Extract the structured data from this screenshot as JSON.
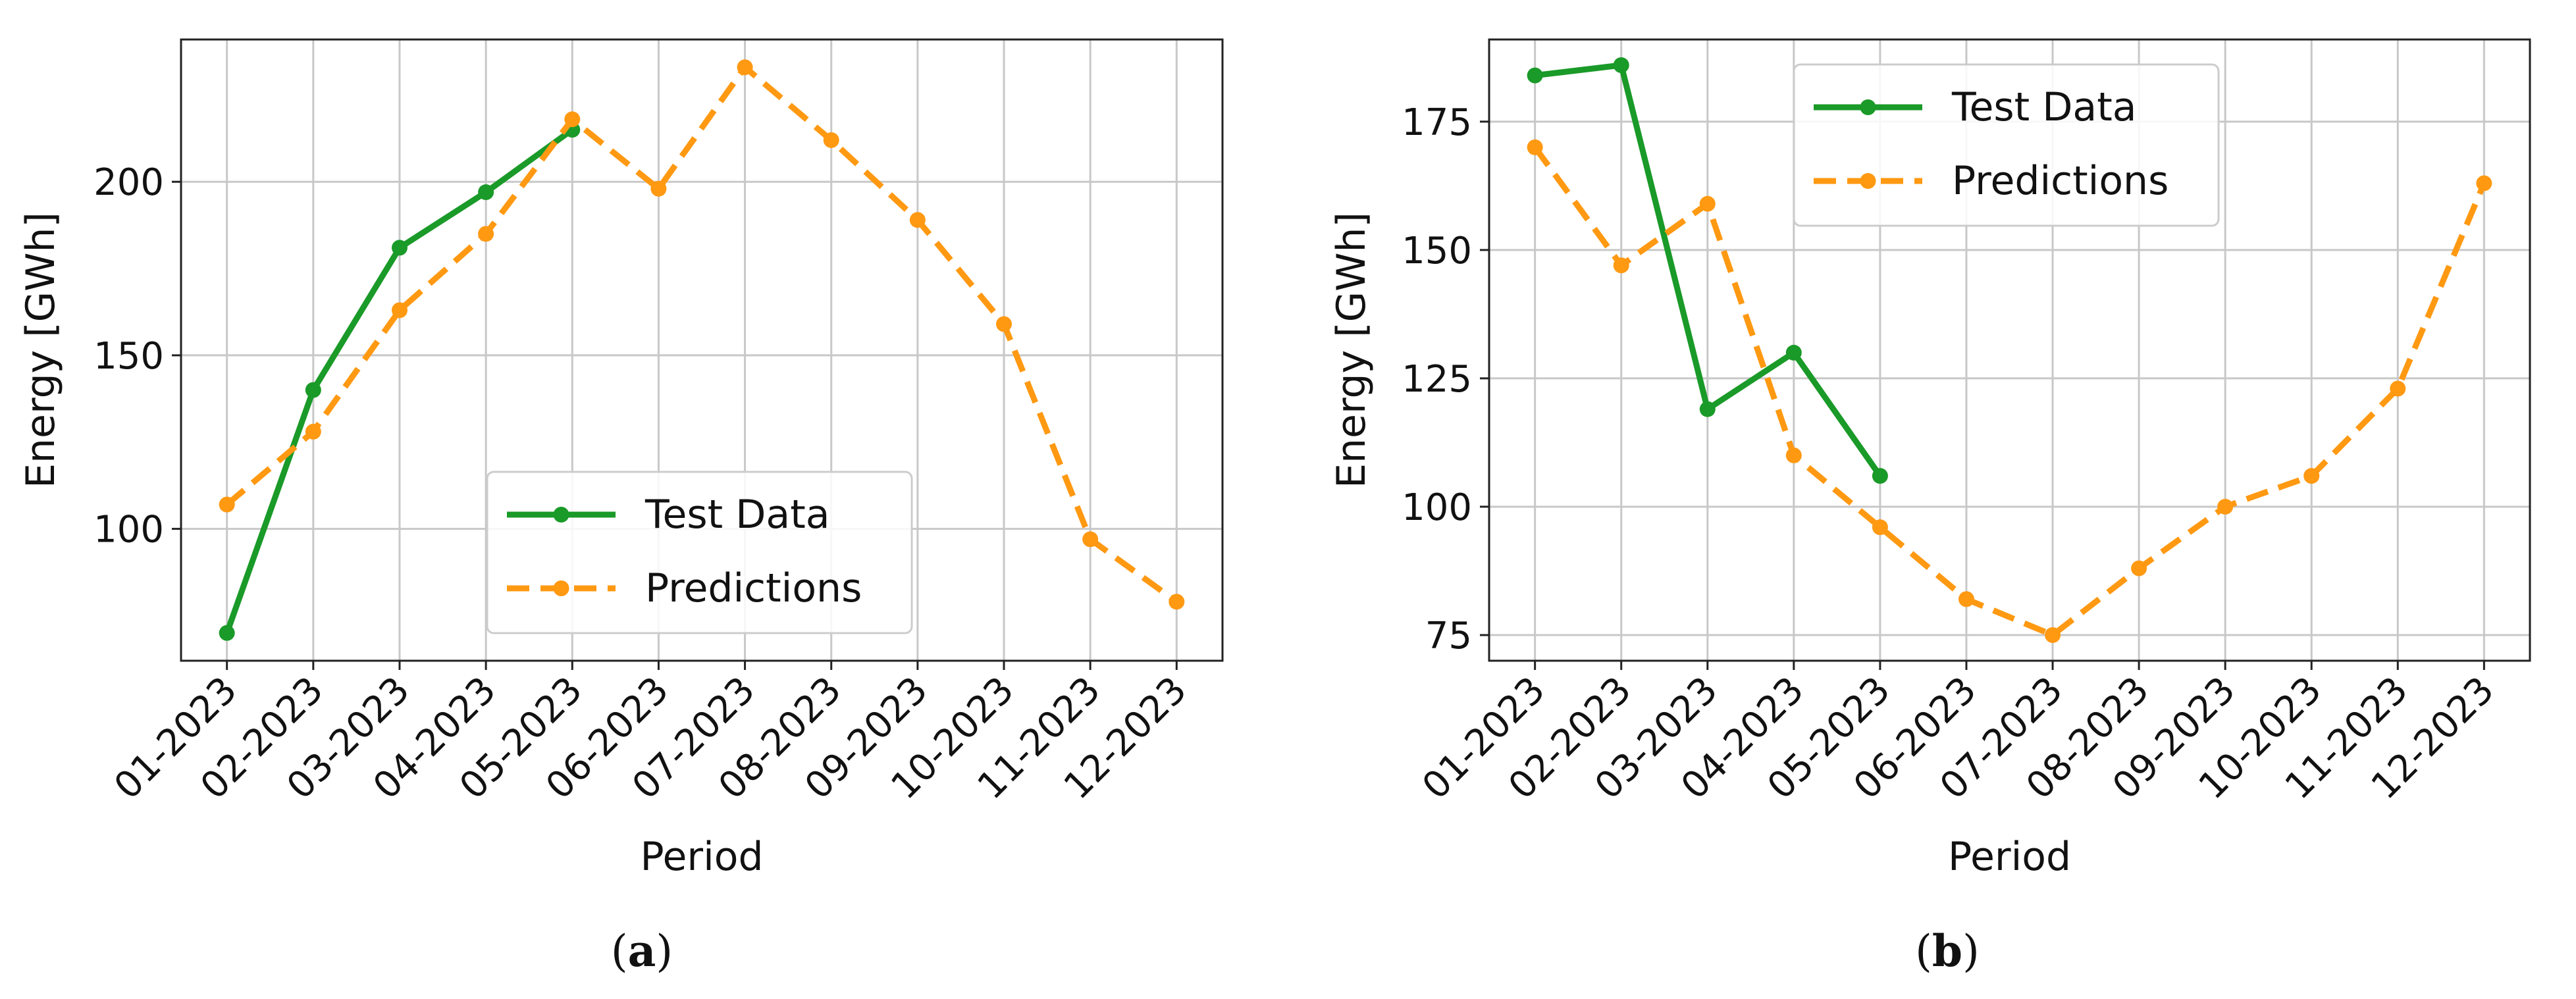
{
  "chart_data": [
    {
      "type": "line",
      "caption": "a",
      "categories": [
        "01-2023",
        "02-2023",
        "03-2023",
        "04-2023",
        "05-2023",
        "06-2023",
        "07-2023",
        "08-2023",
        "09-2023",
        "10-2023",
        "11-2023",
        "12-2023"
      ],
      "series": [
        {
          "name": "Test Data",
          "style": "solid",
          "color": "#1a9a28",
          "values": [
            70,
            140,
            181,
            197,
            215,
            null,
            null,
            null,
            null,
            null,
            null,
            null
          ]
        },
        {
          "name": "Predictions",
          "style": "dashed",
          "color": "#ff9912",
          "values": [
            107,
            128,
            163,
            185,
            218,
            198,
            233,
            212,
            189,
            159,
            97,
            79
          ]
        }
      ],
      "xlabel": "Period",
      "ylabel": "Energy [GWh]",
      "ylim": [
        62,
        241
      ],
      "yticks": [
        100,
        150,
        200
      ],
      "grid": true,
      "legend_position": "lower-center"
    },
    {
      "type": "line",
      "caption": "b",
      "categories": [
        "01-2023",
        "02-2023",
        "03-2023",
        "04-2023",
        "05-2023",
        "06-2023",
        "07-2023",
        "08-2023",
        "09-2023",
        "10-2023",
        "11-2023",
        "12-2023"
      ],
      "series": [
        {
          "name": "Test Data",
          "style": "solid",
          "color": "#1a9a28",
          "values": [
            184,
            186,
            119,
            130,
            106,
            null,
            null,
            null,
            null,
            null,
            null,
            null
          ]
        },
        {
          "name": "Predictions",
          "style": "dashed",
          "color": "#ff9912",
          "values": [
            170,
            147,
            159,
            110,
            96,
            82,
            75,
            88,
            100,
            106,
            123,
            163
          ]
        }
      ],
      "xlabel": "Period",
      "ylabel": "Energy [GWh]",
      "ylim": [
        70,
        191
      ],
      "yticks": [
        75,
        100,
        125,
        150,
        175
      ],
      "grid": true,
      "legend_position": "upper-center"
    }
  ]
}
